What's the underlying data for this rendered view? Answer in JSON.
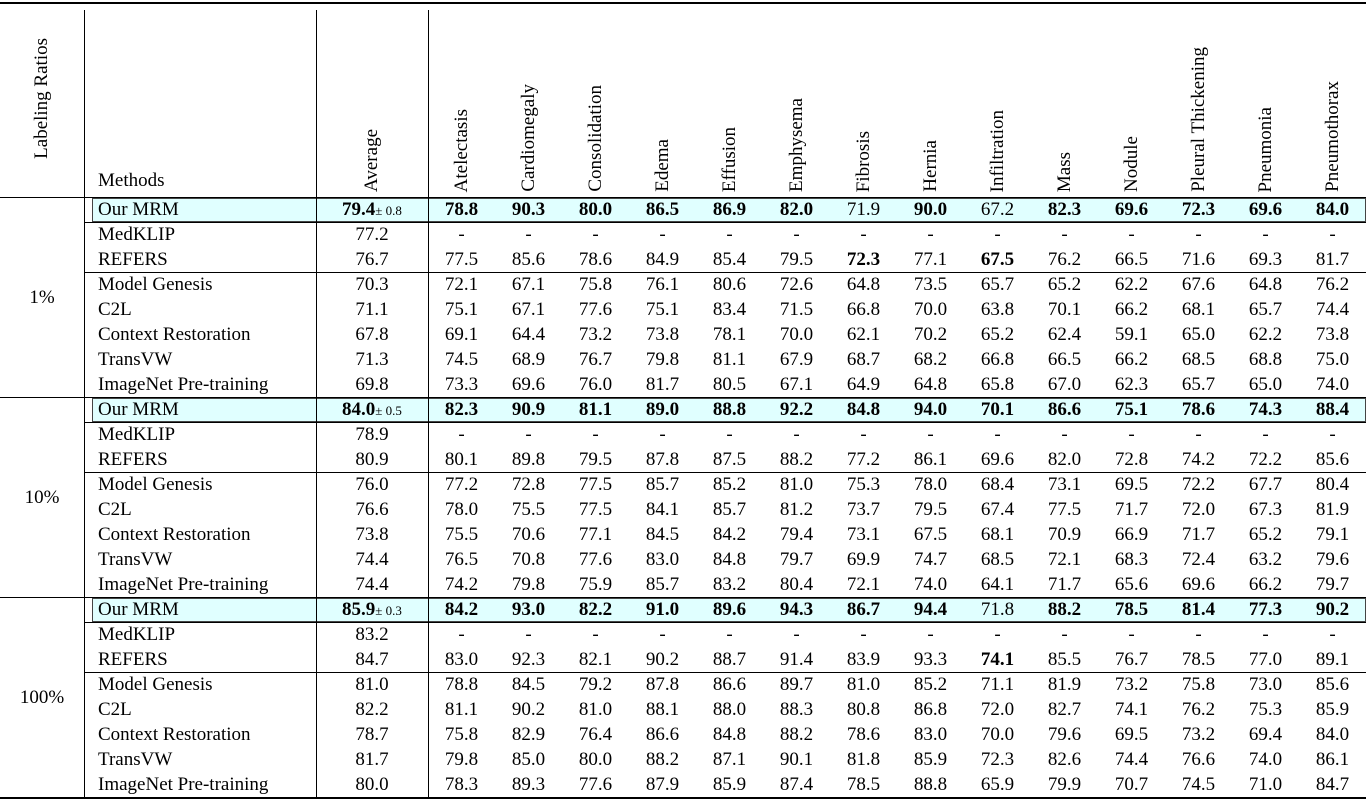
{
  "table": {
    "header": {
      "ratio": "Labeling Ratios",
      "method": "Methods",
      "average": "Average",
      "diseases": [
        "Atelectasis",
        "Cardiomegaly",
        "Consolidation",
        "Edema",
        "Effusion",
        "Emphysema",
        "Fibrosis",
        "Hernia",
        "Infiltration",
        "Mass",
        "Nodule",
        "Pleural Thickening",
        "Pneumonia",
        "Pneumothorax"
      ]
    },
    "groups": [
      {
        "ratio": "1%",
        "rows": [
          {
            "method": "Our MRM",
            "highlight": true,
            "average": "79.4",
            "std": "± 0.8",
            "bold_average": true,
            "values": [
              "78.8",
              "90.3",
              "80.0",
              "86.5",
              "86.9",
              "82.0",
              "71.9",
              "90.0",
              "67.2",
              "82.3",
              "69.6",
              "72.3",
              "69.6",
              "84.0"
            ],
            "bold": [
              0,
              1,
              2,
              3,
              4,
              5,
              7,
              9,
              10,
              11,
              12,
              13
            ]
          },
          {
            "method": "MedKLIP",
            "average": "77.2",
            "values": [
              "-",
              "-",
              "-",
              "-",
              "-",
              "-",
              "-",
              "-",
              "-",
              "-",
              "-",
              "-",
              "-",
              "-"
            ]
          },
          {
            "method": "REFERS",
            "average": "76.7",
            "values": [
              "77.5",
              "85.6",
              "78.6",
              "84.9",
              "85.4",
              "79.5",
              "72.3",
              "77.1",
              "67.5",
              "76.2",
              "66.5",
              "71.6",
              "69.3",
              "81.7"
            ],
            "bold": [
              6,
              8
            ]
          },
          {
            "method": "Model Genesis",
            "average": "70.3",
            "values": [
              "72.1",
              "67.1",
              "75.8",
              "76.1",
              "80.6",
              "72.6",
              "64.8",
              "73.5",
              "65.7",
              "65.2",
              "62.2",
              "67.6",
              "64.8",
              "76.2"
            ]
          },
          {
            "method": "C2L",
            "average": "71.1",
            "values": [
              "75.1",
              "67.1",
              "77.6",
              "75.1",
              "83.4",
              "71.5",
              "66.8",
              "70.0",
              "63.8",
              "70.1",
              "66.2",
              "68.1",
              "65.7",
              "74.4"
            ]
          },
          {
            "method": "Context Restoration",
            "average": "67.8",
            "values": [
              "69.1",
              "64.4",
              "73.2",
              "73.8",
              "78.1",
              "70.0",
              "62.1",
              "70.2",
              "65.2",
              "62.4",
              "59.1",
              "65.0",
              "62.2",
              "73.8"
            ]
          },
          {
            "method": "TransVW",
            "average": "71.3",
            "values": [
              "74.5",
              "68.9",
              "76.7",
              "79.8",
              "81.1",
              "67.9",
              "68.7",
              "68.2",
              "66.8",
              "66.5",
              "66.2",
              "68.5",
              "68.8",
              "75.0"
            ]
          },
          {
            "method": "ImageNet Pre-training",
            "average": "69.8",
            "values": [
              "73.3",
              "69.6",
              "76.0",
              "81.7",
              "80.5",
              "67.1",
              "64.9",
              "64.8",
              "65.8",
              "67.0",
              "62.3",
              "65.7",
              "65.0",
              "74.0"
            ]
          }
        ]
      },
      {
        "ratio": "10%",
        "rows": [
          {
            "method": "Our MRM",
            "highlight": true,
            "average": "84.0",
            "std": "± 0.5",
            "bold_average": true,
            "values": [
              "82.3",
              "90.9",
              "81.1",
              "89.0",
              "88.8",
              "92.2",
              "84.8",
              "94.0",
              "70.1",
              "86.6",
              "75.1",
              "78.6",
              "74.3",
              "88.4"
            ],
            "bold": [
              0,
              1,
              2,
              3,
              4,
              5,
              6,
              7,
              8,
              9,
              10,
              11,
              12,
              13
            ]
          },
          {
            "method": "MedKLIP",
            "average": "78.9",
            "values": [
              "-",
              "-",
              "-",
              "-",
              "-",
              "-",
              "-",
              "-",
              "-",
              "-",
              "-",
              "-",
              "-",
              "-"
            ]
          },
          {
            "method": "REFERS",
            "average": "80.9",
            "values": [
              "80.1",
              "89.8",
              "79.5",
              "87.8",
              "87.5",
              "88.2",
              "77.2",
              "86.1",
              "69.6",
              "82.0",
              "72.8",
              "74.2",
              "72.2",
              "85.6"
            ]
          },
          {
            "method": "Model Genesis",
            "average": "76.0",
            "values": [
              "77.2",
              "72.8",
              "77.5",
              "85.7",
              "85.2",
              "81.0",
              "75.3",
              "78.0",
              "68.4",
              "73.1",
              "69.5",
              "72.2",
              "67.7",
              "80.4"
            ]
          },
          {
            "method": "C2L",
            "average": "76.6",
            "values": [
              "78.0",
              "75.5",
              "77.5",
              "84.1",
              "85.7",
              "81.2",
              "73.7",
              "79.5",
              "67.4",
              "77.5",
              "71.7",
              "72.0",
              "67.3",
              "81.9"
            ]
          },
          {
            "method": "Context Restoration",
            "average": "73.8",
            "values": [
              "75.5",
              "70.6",
              "77.1",
              "84.5",
              "84.2",
              "79.4",
              "73.1",
              "67.5",
              "68.1",
              "70.9",
              "66.9",
              "71.7",
              "65.2",
              "79.1"
            ]
          },
          {
            "method": "TransVW",
            "average": "74.4",
            "values": [
              "76.5",
              "70.8",
              "77.6",
              "83.0",
              "84.8",
              "79.7",
              "69.9",
              "74.7",
              "68.5",
              "72.1",
              "68.3",
              "72.4",
              "63.2",
              "79.6"
            ]
          },
          {
            "method": "ImageNet Pre-training",
            "average": "74.4",
            "values": [
              "74.2",
              "79.8",
              "75.9",
              "85.7",
              "83.2",
              "80.4",
              "72.1",
              "74.0",
              "64.1",
              "71.7",
              "65.6",
              "69.6",
              "66.2",
              "79.7"
            ]
          }
        ]
      },
      {
        "ratio": "100%",
        "rows": [
          {
            "method": "Our MRM",
            "highlight": true,
            "average": "85.9",
            "std": "± 0.3",
            "bold_average": true,
            "values": [
              "84.2",
              "93.0",
              "82.2",
              "91.0",
              "89.6",
              "94.3",
              "86.7",
              "94.4",
              "71.8",
              "88.2",
              "78.5",
              "81.4",
              "77.3",
              "90.2"
            ],
            "bold": [
              0,
              1,
              2,
              3,
              4,
              5,
              6,
              7,
              9,
              10,
              11,
              12,
              13
            ]
          },
          {
            "method": "MedKLIP",
            "average": "83.2",
            "values": [
              "-",
              "-",
              "-",
              "-",
              "-",
              "-",
              "-",
              "-",
              "-",
              "-",
              "-",
              "-",
              "-",
              "-"
            ]
          },
          {
            "method": "REFERS",
            "average": "84.7",
            "values": [
              "83.0",
              "92.3",
              "82.1",
              "90.2",
              "88.7",
              "91.4",
              "83.9",
              "93.3",
              "74.1",
              "85.5",
              "76.7",
              "78.5",
              "77.0",
              "89.1"
            ],
            "bold": [
              8
            ]
          },
          {
            "method": "Model Genesis",
            "average": "81.0",
            "values": [
              "78.8",
              "84.5",
              "79.2",
              "87.8",
              "86.6",
              "89.7",
              "81.0",
              "85.2",
              "71.1",
              "81.9",
              "73.2",
              "75.8",
              "73.0",
              "85.6"
            ]
          },
          {
            "method": "C2L",
            "average": "82.2",
            "values": [
              "81.1",
              "90.2",
              "81.0",
              "88.1",
              "88.0",
              "88.3",
              "80.8",
              "86.8",
              "72.0",
              "82.7",
              "74.1",
              "76.2",
              "75.3",
              "85.9"
            ]
          },
          {
            "method": "Context Restoration",
            "average": "78.7",
            "values": [
              "75.8",
              "82.9",
              "76.4",
              "86.6",
              "84.8",
              "88.2",
              "78.6",
              "83.0",
              "70.0",
              "79.6",
              "69.5",
              "73.2",
              "69.4",
              "84.0"
            ]
          },
          {
            "method": "TransVW",
            "average": "81.7",
            "values": [
              "79.8",
              "85.0",
              "80.0",
              "88.2",
              "87.1",
              "90.1",
              "81.8",
              "85.9",
              "72.3",
              "82.6",
              "74.4",
              "76.6",
              "74.0",
              "86.1"
            ]
          },
          {
            "method": "ImageNet Pre-training",
            "average": "80.0",
            "values": [
              "78.3",
              "89.3",
              "77.6",
              "87.9",
              "85.9",
              "87.4",
              "78.5",
              "88.8",
              "65.9",
              "79.9",
              "70.7",
              "74.5",
              "71.0",
              "84.7"
            ]
          }
        ]
      }
    ]
  }
}
